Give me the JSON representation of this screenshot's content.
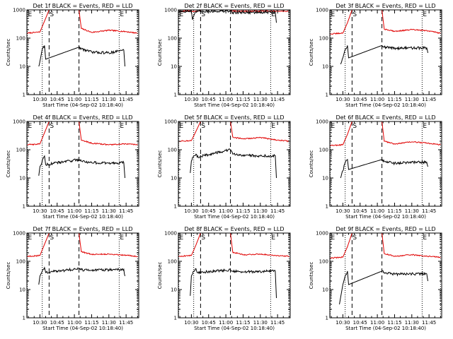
{
  "chart_data": {
    "type": "line",
    "common": {
      "xlabel": "Start Time (04-Sep-02 10:18:40)",
      "ylabel": "Counts/sec",
      "xlim": [
        "10:18:40",
        "11:56:00"
      ],
      "ylim": [
        1,
        1000
      ],
      "y_scale": "log",
      "x_ticks": [
        "10:30",
        "10:45",
        "11:00",
        "11:15",
        "11:30",
        "11:45"
      ],
      "y_ticks": [
        "1",
        "10",
        "100",
        "1000"
      ],
      "grid": false,
      "legend": "none",
      "colors": {
        "lld": "#e00000",
        "events": "#000000",
        "axes": "#000000"
      },
      "markers": [
        {
          "label": "E",
          "time": "10:19:00",
          "line": "dotted"
        },
        {
          "label": "",
          "time": "10:32:00",
          "line": "dotted"
        },
        {
          "label": "S",
          "time": "10:38:00",
          "line": "dashed"
        },
        {
          "label": "",
          "time": "11:04:00",
          "line": "dashed"
        },
        {
          "label": "E",
          "time": "11:39:00",
          "line": "dotted"
        },
        {
          "label": "",
          "time": "11:55:00",
          "line": "dotted"
        }
      ]
    },
    "panels": [
      {
        "title": "Det 1f BLACK = Events, RED = LLD",
        "series": [
          {
            "name": "RED = LLD",
            "color": "#e00000",
            "x": [
              "10:19:00",
              "10:30:00",
              "10:34:00",
              "10:38:00",
              "11:04:00",
              "11:06:00",
              "11:15:00",
              "11:30:00",
              "11:45:00",
              "11:55:00"
            ],
            "y": [
              150,
              165,
              400,
              1000,
              1000,
              220,
              160,
              190,
              170,
              150
            ]
          },
          {
            "name": "BLACK = Events",
            "color": "#000000",
            "x": [
              "10:29:00",
              "10:30:00",
              "10:32:00",
              "10:34:00",
              "10:35:00",
              "11:04:00",
              "11:06:00",
              "11:15:00",
              "11:30:00",
              "11:43:00",
              "11:44:00"
            ],
            "y": [
              10,
              15,
              40,
              55,
              18,
              48,
              42,
              32,
              30,
              38,
              10
            ]
          }
        ]
      },
      {
        "title": "Det 2f BLACK = Events, RED = LLD",
        "series": [
          {
            "name": "RED = LLD",
            "color": "#e00000",
            "x": [
              "10:19:00",
              "10:30:00",
              "10:36:00",
              "10:38:00",
              "11:04:00",
              "11:06:00",
              "11:15:00",
              "11:30:00",
              "11:45:00",
              "11:55:00"
            ],
            "y": [
              900,
              900,
              900,
              1000,
              1000,
              900,
              900,
              900,
              900,
              900
            ]
          },
          {
            "name": "BLACK = Events",
            "color": "#000000",
            "x": [
              "10:19:00",
              "10:30:00",
              "10:31:00",
              "10:34:00",
              "10:36:00",
              "11:04:00",
              "11:06:00",
              "11:15:00",
              "11:30:00",
              "11:43:00",
              "11:44:00"
            ],
            "y": [
              900,
              880,
              450,
              870,
              900,
              900,
              800,
              820,
              810,
              820,
              350
            ]
          }
        ]
      },
      {
        "title": "Det 3f BLACK = Events, RED = LLD",
        "series": [
          {
            "name": "RED = LLD",
            "color": "#e00000",
            "x": [
              "10:19:00",
              "10:30:00",
              "10:34:00",
              "10:38:00",
              "11:04:00",
              "11:06:00",
              "11:15:00",
              "11:30:00",
              "11:45:00",
              "11:55:00"
            ],
            "y": [
              140,
              150,
              350,
              1000,
              1000,
              210,
              175,
              200,
              180,
              150
            ]
          },
          {
            "name": "BLACK = Events",
            "color": "#000000",
            "x": [
              "10:28:00",
              "10:30:00",
              "10:32:00",
              "10:34:00",
              "10:35:00",
              "11:04:00",
              "11:06:00",
              "11:15:00",
              "11:30:00",
              "11:43:00",
              "11:44:00"
            ],
            "y": [
              12,
              20,
              40,
              55,
              20,
              55,
              48,
              44,
              45,
              45,
              30
            ]
          }
        ]
      },
      {
        "title": "Det 4f BLACK = Events, RED = LLD",
        "series": [
          {
            "name": "RED = LLD",
            "color": "#e00000",
            "x": [
              "10:19:00",
              "10:30:00",
              "10:34:00",
              "10:38:00",
              "11:04:00",
              "11:06:00",
              "11:15:00",
              "11:30:00",
              "11:45:00",
              "11:55:00"
            ],
            "y": [
              150,
              160,
              400,
              1000,
              1000,
              220,
              170,
              150,
              160,
              150
            ]
          },
          {
            "name": "BLACK = Events",
            "color": "#000000",
            "x": [
              "10:29:00",
              "10:30:00",
              "10:32:00",
              "10:34:00",
              "10:35:00",
              "11:04:00",
              "11:06:00",
              "11:15:00",
              "11:30:00",
              "11:43:00",
              "11:44:00"
            ],
            "y": [
              12,
              25,
              40,
              60,
              30,
              45,
              40,
              35,
              33,
              35,
              10
            ]
          }
        ]
      },
      {
        "title": "Det 5f BLACK = Events, RED = LLD",
        "series": [
          {
            "name": "RED = LLD",
            "color": "#e00000",
            "x": [
              "10:19:00",
              "10:30:00",
              "10:34:00",
              "10:38:00",
              "11:04:00",
              "11:06:00",
              "11:15:00",
              "11:30:00",
              "11:45:00",
              "11:55:00"
            ],
            "y": [
              200,
              210,
              450,
              1000,
              1000,
              280,
              240,
              270,
              220,
              200
            ]
          },
          {
            "name": "BLACK = Events",
            "color": "#000000",
            "x": [
              "10:29:00",
              "10:30:00",
              "10:32:00",
              "10:34:00",
              "10:35:00",
              "11:04:00",
              "11:06:00",
              "11:15:00",
              "11:30:00",
              "11:43:00",
              "11:44:00"
            ],
            "y": [
              15,
              40,
              60,
              70,
              55,
              100,
              70,
              65,
              60,
              62,
              10
            ]
          }
        ]
      },
      {
        "title": "Det 6f BLACK = Events, RED = LLD",
        "series": [
          {
            "name": "RED = LLD",
            "color": "#e00000",
            "x": [
              "10:19:00",
              "10:30:00",
              "10:34:00",
              "10:38:00",
              "11:04:00",
              "11:06:00",
              "11:15:00",
              "11:30:00",
              "11:45:00",
              "11:55:00"
            ],
            "y": [
              140,
              150,
              350,
              1000,
              1000,
              200,
              160,
              190,
              170,
              150
            ]
          },
          {
            "name": "BLACK = Events",
            "color": "#000000",
            "x": [
              "10:28:00",
              "10:30:00",
              "10:32:00",
              "10:34:00",
              "10:35:00",
              "11:04:00",
              "11:06:00",
              "11:15:00",
              "11:30:00",
              "11:43:00",
              "11:44:00"
            ],
            "y": [
              10,
              18,
              35,
              45,
              20,
              45,
              38,
              33,
              36,
              36,
              25
            ]
          }
        ]
      },
      {
        "title": "Det 7f BLACK = Events, RED = LLD",
        "series": [
          {
            "name": "RED = LLD",
            "color": "#e00000",
            "x": [
              "10:19:00",
              "10:30:00",
              "10:34:00",
              "10:38:00",
              "11:04:00",
              "11:06:00",
              "11:15:00",
              "11:30:00",
              "11:45:00",
              "11:55:00"
            ],
            "y": [
              150,
              160,
              400,
              1000,
              1000,
              220,
              175,
              180,
              165,
              150
            ]
          },
          {
            "name": "BLACK = Events",
            "color": "#000000",
            "x": [
              "10:29:00",
              "10:30:00",
              "10:32:00",
              "10:34:00",
              "10:35:00",
              "11:04:00",
              "11:06:00",
              "11:15:00",
              "11:30:00",
              "11:43:00",
              "11:44:00"
            ],
            "y": [
              15,
              30,
              45,
              60,
              40,
              55,
              50,
              48,
              50,
              52,
              30
            ]
          }
        ]
      },
      {
        "title": "Det 8f BLACK = Events, RED = LLD",
        "series": [
          {
            "name": "RED = LLD",
            "color": "#e00000",
            "x": [
              "10:19:00",
              "10:30:00",
              "10:34:00",
              "10:38:00",
              "11:04:00",
              "11:06:00",
              "11:15:00",
              "11:30:00",
              "11:45:00",
              "11:55:00"
            ],
            "y": [
              150,
              160,
              380,
              1000,
              1000,
              210,
              170,
              180,
              160,
              150
            ]
          },
          {
            "name": "BLACK = Events",
            "color": "#000000",
            "x": [
              "10:29:00",
              "10:30:00",
              "10:32:00",
              "10:34:00",
              "10:35:00",
              "11:04:00",
              "11:06:00",
              "11:15:00",
              "11:30:00",
              "11:43:00",
              "11:44:00"
            ],
            "y": [
              6,
              30,
              45,
              55,
              40,
              50,
              45,
              42,
              44,
              45,
              5
            ]
          }
        ]
      },
      {
        "title": "Det 9f BLACK = Events, RED = LLD",
        "series": [
          {
            "name": "RED = LLD",
            "color": "#e00000",
            "x": [
              "10:19:00",
              "10:30:00",
              "10:34:00",
              "10:38:00",
              "11:04:00",
              "11:06:00",
              "11:15:00",
              "11:30:00",
              "11:45:00",
              "11:55:00"
            ],
            "y": [
              130,
              140,
              330,
              1000,
              1000,
              190,
              150,
              170,
              150,
              140
            ]
          },
          {
            "name": "BLACK = Events",
            "color": "#000000",
            "x": [
              "10:27:00",
              "10:30:00",
              "10:32:00",
              "10:34:00",
              "10:35:00",
              "11:04:00",
              "11:06:00",
              "11:15:00",
              "11:30:00",
              "11:43:00",
              "11:44:00"
            ],
            "y": [
              3,
              15,
              30,
              45,
              15,
              45,
              40,
              35,
              36,
              36,
              20
            ]
          }
        ]
      }
    ]
  }
}
